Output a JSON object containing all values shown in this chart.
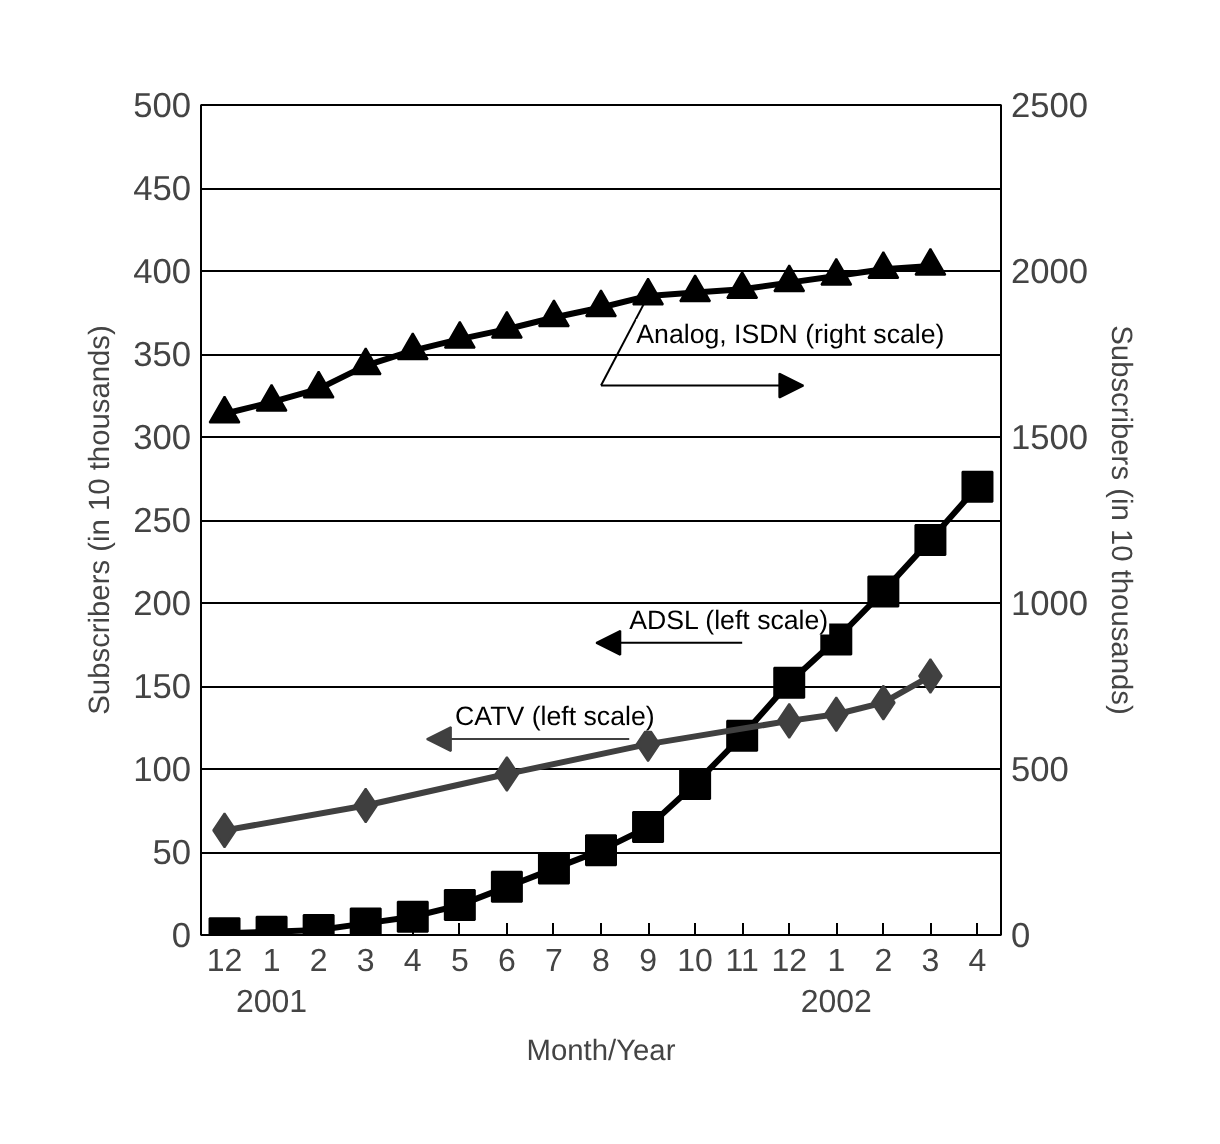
{
  "chart_data": {
    "type": "line",
    "xlabel": "Month/Year",
    "ylabel": "Subscribers (in 10 thousands)",
    "y2label": "Subscribers (in 10 thousands)",
    "categories": [
      "12",
      "1\n2001",
      "2",
      "3",
      "4",
      "5",
      "6",
      "7",
      "8",
      "9",
      "10",
      "11",
      "12",
      "1\n2002",
      "2",
      "3",
      "4"
    ],
    "ylim": [
      0,
      500
    ],
    "yticks": [
      0,
      50,
      100,
      150,
      200,
      250,
      300,
      350,
      400,
      450,
      500
    ],
    "y2lim": [
      0,
      2500
    ],
    "y2ticks": [
      0,
      500,
      1000,
      1500,
      2000,
      2500
    ],
    "grid": "y",
    "series": [
      {
        "name": "Analog, ISDN (right scale)",
        "color": "#000000",
        "axis": "y2",
        "marker": "triangle",
        "values": [
          1570,
          1605,
          1645,
          1715,
          1760,
          1795,
          1825,
          1860,
          1890,
          1925,
          1935,
          1945,
          1965,
          1985,
          2005,
          2015,
          null
        ]
      },
      {
        "name": "ADSL (left scale)",
        "color": "#000000",
        "marker": "square",
        "values": [
          1,
          2,
          3,
          7,
          11,
          18,
          29,
          40,
          51,
          65,
          91,
          120,
          152,
          178,
          207,
          238,
          270
        ]
      },
      {
        "name": "CATV (left scale)",
        "color": "#404040",
        "marker": "diamond",
        "values": [
          63,
          null,
          null,
          78,
          null,
          null,
          97,
          null,
          null,
          115,
          null,
          null,
          129,
          133,
          140,
          156,
          null
        ]
      }
    ]
  }
}
